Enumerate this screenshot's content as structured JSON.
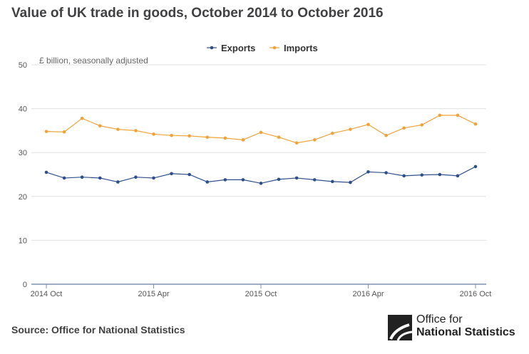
{
  "title": "Value of UK trade in goods, October 2014 to October 2016",
  "source": "Source: Office for National Statistics",
  "logo": {
    "line1": "Office for",
    "line2": "National Statistics"
  },
  "colors": {
    "exports": "#2e4f8a",
    "imports": "#f0a239",
    "grid": "#e0e0e0",
    "axis": "#7d92b5"
  },
  "chart_data": {
    "type": "line",
    "ylabel": "£ billion, seasonally adjusted",
    "ylim": [
      0,
      50
    ],
    "yticks": [
      0,
      10,
      20,
      30,
      40,
      50
    ],
    "x": [
      "2014 Oct",
      "2014 Nov",
      "2014 Dec",
      "2015 Jan",
      "2015 Feb",
      "2015 Mar",
      "2015 Apr",
      "2015 May",
      "2015 Jun",
      "2015 Jul",
      "2015 Aug",
      "2015 Sep",
      "2015 Oct",
      "2015 Nov",
      "2015 Dec",
      "2016 Jan",
      "2016 Feb",
      "2016 Mar",
      "2016 Apr",
      "2016 May",
      "2016 Jun",
      "2016 Jul",
      "2016 Aug",
      "2016 Sep",
      "2016 Oct"
    ],
    "xtick_labels": [
      {
        "index": 0,
        "label": "2014 Oct"
      },
      {
        "index": 6,
        "label": "2015 Apr"
      },
      {
        "index": 12,
        "label": "2015 Oct"
      },
      {
        "index": 18,
        "label": "2016 Apr"
      },
      {
        "index": 24,
        "label": "2016 Oct"
      }
    ],
    "legend_position": "top-center",
    "grid": true,
    "series": [
      {
        "name": "Exports",
        "values": [
          25.5,
          24.2,
          24.4,
          24.2,
          23.3,
          24.4,
          24.2,
          25.2,
          25.0,
          23.3,
          23.8,
          23.8,
          23.0,
          23.9,
          24.2,
          23.8,
          23.4,
          23.2,
          25.6,
          25.4,
          24.7,
          24.9,
          25.0,
          24.7,
          26.8
        ]
      },
      {
        "name": "Imports",
        "values": [
          34.8,
          34.7,
          37.8,
          36.1,
          35.3,
          35.0,
          34.2,
          33.9,
          33.8,
          33.5,
          33.3,
          32.9,
          34.6,
          33.5,
          32.2,
          32.9,
          34.4,
          35.3,
          36.4,
          33.9,
          35.6,
          36.3,
          38.5,
          38.5,
          36.5
        ]
      }
    ]
  }
}
